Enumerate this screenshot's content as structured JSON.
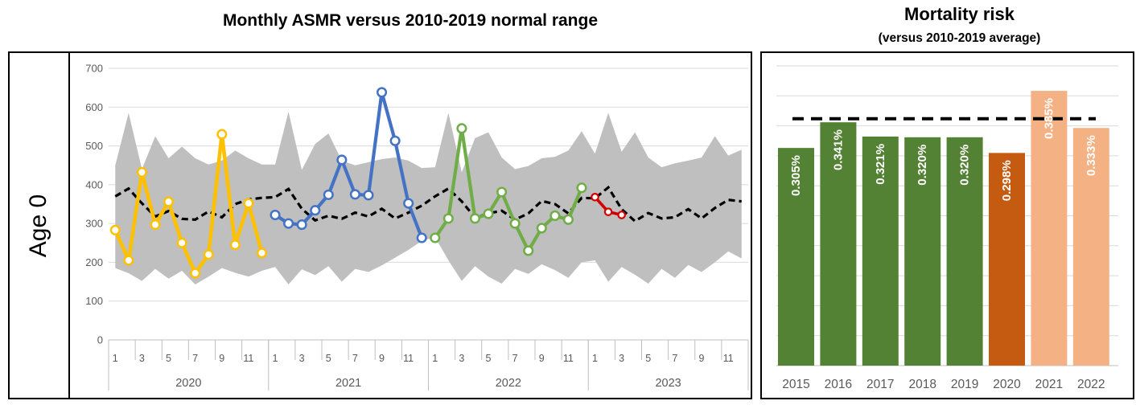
{
  "chart_data": [
    {
      "type": "line",
      "title": "Monthly ASMR versus 2010-2019 normal range",
      "row_label": "Age 0",
      "ylim": [
        0,
        700
      ],
      "y_ticks": [
        0,
        100,
        200,
        300,
        400,
        500,
        600,
        700
      ],
      "grid": true,
      "x_axis": {
        "month_labels": [
          "1",
          "3",
          "5",
          "7",
          "9",
          "11"
        ],
        "year_labels": [
          "2020",
          "2021",
          "2022",
          "2023"
        ],
        "months_per_year": 12
      },
      "band": {
        "name": "2010-2019 normal range",
        "color": "#BFBFBF",
        "upper": [
          450,
          585,
          440,
          525,
          468,
          498,
          468,
          452,
          462,
          488,
          468,
          452,
          452,
          588,
          438,
          505,
          532,
          462,
          450,
          458,
          466,
          470,
          462,
          443,
          445,
          585,
          432,
          520,
          535,
          470,
          440,
          448,
          468,
          472,
          488,
          538,
          480,
          585,
          485,
          535,
          470,
          445,
          455,
          462,
          470,
          525,
          475,
          490
        ],
        "lower": [
          185,
          172,
          152,
          183,
          158,
          178,
          143,
          163,
          185,
          173,
          163,
          178,
          188,
          143,
          182,
          167,
          190,
          150,
          183,
          175,
          192,
          212,
          232,
          255,
          265,
          205,
          152,
          190,
          163,
          145,
          183,
          170,
          195,
          180,
          160,
          200,
          205,
          150,
          188,
          168,
          145,
          183,
          160,
          193,
          175,
          200,
          228,
          210
        ]
      },
      "average_line": {
        "name": "2010-2019 average",
        "style": "dashed",
        "color": "#000000",
        "values": [
          370,
          390,
          352,
          318,
          332,
          312,
          310,
          331,
          316,
          350,
          362,
          366,
          368,
          389,
          338,
          308,
          320,
          312,
          328,
          318,
          338,
          313,
          328,
          346,
          370,
          390,
          357,
          315,
          326,
          333,
          310,
          326,
          358,
          350,
          326,
          366,
          365,
          393,
          337,
          306,
          327,
          313,
          316,
          337,
          313,
          340,
          361,
          357
        ]
      },
      "series": [
        {
          "name": "2020",
          "color": "#FFC000",
          "start_index": 0,
          "values": [
            283,
            205,
            432,
            297,
            356,
            250,
            172,
            220,
            530,
            245,
            352,
            224
          ]
        },
        {
          "name": "2021",
          "color": "#4472C4",
          "start_index": 12,
          "values": [
            322,
            300,
            297,
            334,
            374,
            464,
            375,
            373,
            638,
            513,
            352,
            263
          ]
        },
        {
          "name": "2022",
          "color": "#70AD47",
          "start_index": 24,
          "values": [
            263,
            313,
            545,
            313,
            325,
            381,
            300,
            230,
            288,
            320,
            310,
            392
          ]
        },
        {
          "name": "2023",
          "color": "#D40000",
          "start_index": 36,
          "values": [
            368,
            330,
            322
          ]
        }
      ]
    },
    {
      "type": "bar",
      "title": "Mortality risk",
      "subtitle": "(versus 2010-2019 average)",
      "categories": [
        "2015",
        "2016",
        "2017",
        "2018",
        "2019",
        "2020",
        "2021",
        "2022"
      ],
      "values": [
        0.305,
        0.341,
        0.321,
        0.32,
        0.32,
        0.298,
        0.385,
        0.333
      ],
      "value_labels": [
        "0.305%",
        "0.341%",
        "0.321%",
        "0.320%",
        "0.320%",
        "0.298%",
        "0.385%",
        "0.333%"
      ],
      "bar_colors": [
        "#548235",
        "#548235",
        "#548235",
        "#548235",
        "#548235",
        "#C55A11",
        "#F4B183",
        "#F4B183"
      ],
      "label_color": "#FFFFFF",
      "reference_line": {
        "name": "2010-2019 average",
        "value": 0.346,
        "style": "dashed",
        "color": "#000000"
      },
      "ylim": [
        0,
        0.42
      ],
      "grid": true
    }
  ]
}
